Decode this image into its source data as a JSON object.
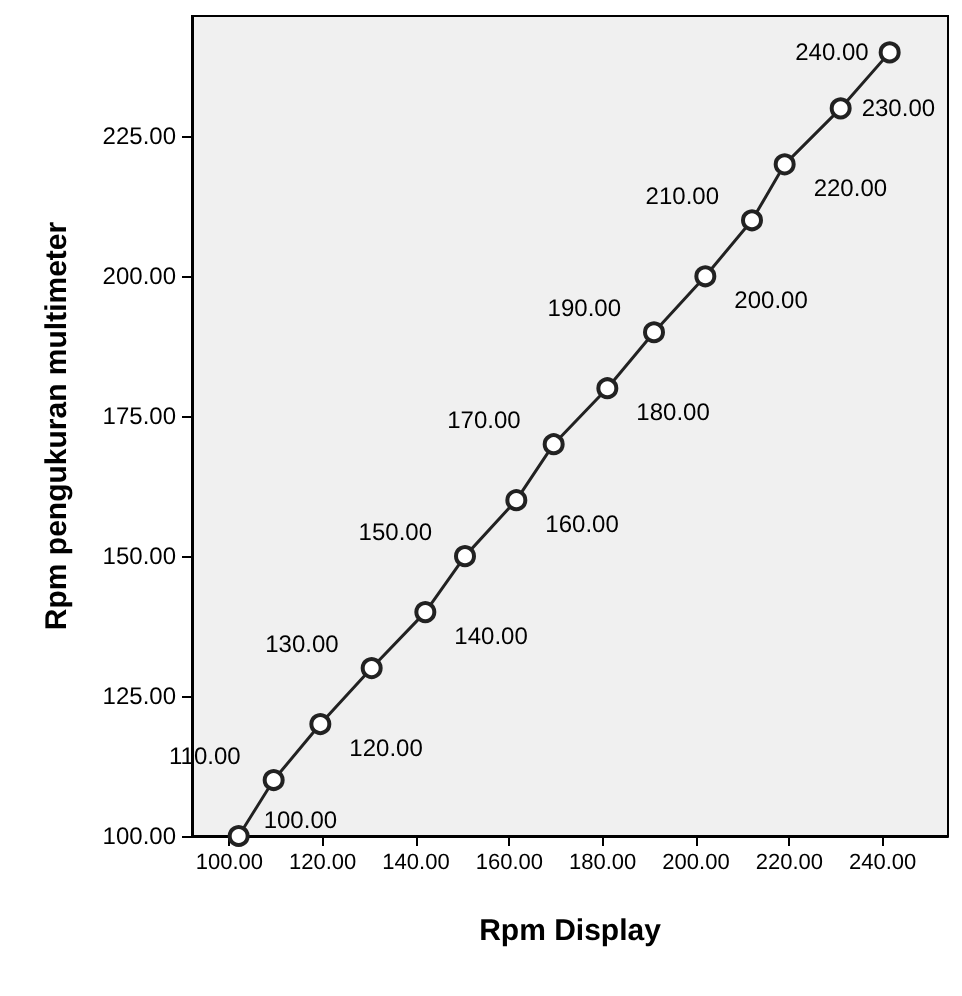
{
  "chart_data": {
    "type": "line",
    "xlabel": "Rpm Display",
    "ylabel": "Rpm pengukuran multimeter",
    "x": [
      102,
      109.5,
      119.5,
      130.5,
      142,
      150.5,
      161.5,
      169.5,
      181,
      191,
      202,
      212,
      219,
      231,
      241.5
    ],
    "series": [
      {
        "color": "#222222",
        "values": [
          100,
          110,
          120,
          130,
          140,
          150,
          160,
          170,
          180,
          190,
          200,
          210,
          220,
          230,
          240
        ],
        "value_labels": [
          "100.00",
          "110.00",
          "120.00",
          "130.00",
          "140.00",
          "150.00",
          "160.00",
          "170.00",
          "180.00",
          "190.00",
          "200.00",
          "210.00",
          "220.00",
          "230.00",
          "240.00"
        ]
      }
    ],
    "xlim": [
      92,
      254
    ],
    "xticks": [
      {
        "value": 100,
        "label": "100.00"
      },
      {
        "value": 120,
        "label": "120.00"
      },
      {
        "value": 140,
        "label": "140.00"
      },
      {
        "value": 160,
        "label": "160.00"
      },
      {
        "value": 180,
        "label": "180.00"
      },
      {
        "value": 200,
        "label": "200.00"
      },
      {
        "value": 220,
        "label": "220.00"
      },
      {
        "value": 240,
        "label": "240.00"
      }
    ],
    "ylim": [
      100,
      246.5
    ],
    "yticks": [
      {
        "value": 100,
        "label": "100.00"
      },
      {
        "value": 125,
        "label": "125.00"
      },
      {
        "value": 150,
        "label": "150.00"
      },
      {
        "value": 175,
        "label": "175.00"
      },
      {
        "value": 200,
        "label": "200.00"
      },
      {
        "value": 225,
        "label": "225.00"
      }
    ],
    "marker": "circle",
    "line_style": "solid",
    "grid": false
  }
}
